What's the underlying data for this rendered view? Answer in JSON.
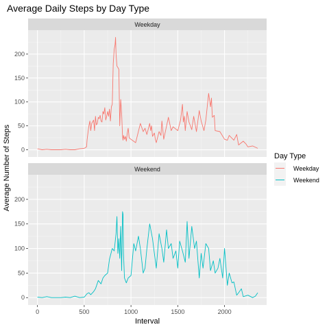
{
  "chart_data": {
    "type": "line",
    "title": "Average Daily Steps by Day Type",
    "xlabel": "Interval",
    "ylabel": "Average Number of Steps",
    "xlim": [
      -100,
      2450
    ],
    "ylim": [
      -15,
      250
    ],
    "x_ticks": [
      0,
      500,
      1000,
      1500,
      2000
    ],
    "y_ticks": [
      0,
      50,
      100,
      150,
      200
    ],
    "legend": {
      "title": "Day Type",
      "position": "right",
      "entries": [
        "Weekday",
        "Weekend"
      ]
    },
    "colors": {
      "Weekday": "#F8766D",
      "Weekend": "#00BFC4"
    },
    "facets": [
      "Weekday",
      "Weekend"
    ],
    "series": [
      {
        "name": "Weekday",
        "x": [
          0,
          50,
          100,
          150,
          200,
          250,
          300,
          350,
          400,
          450,
          500,
          525,
          530,
          540,
          550,
          560,
          570,
          580,
          600,
          610,
          620,
          630,
          640,
          650,
          660,
          670,
          680,
          690,
          700,
          710,
          720,
          730,
          740,
          750,
          760,
          770,
          780,
          790,
          800,
          810,
          820,
          830,
          835,
          840,
          850,
          860,
          870,
          880,
          890,
          900,
          910,
          915,
          920,
          930,
          940,
          950,
          960,
          970,
          980,
          1000,
          1050,
          1100,
          1130,
          1150,
          1170,
          1200,
          1210,
          1220,
          1230,
          1250,
          1260,
          1270,
          1300,
          1320,
          1330,
          1340,
          1350,
          1400,
          1430,
          1450,
          1500,
          1530,
          1550,
          1560,
          1570,
          1580,
          1600,
          1620,
          1650,
          1670,
          1700,
          1730,
          1750,
          1780,
          1800,
          1830,
          1850,
          1860,
          1870,
          1890,
          1900,
          1950,
          2000,
          2030,
          2050,
          2100,
          2130,
          2150,
          2200,
          2230,
          2250,
          2300,
          2355
        ],
        "values": [
          2,
          0,
          1,
          0,
          0,
          0,
          1,
          0,
          0,
          2,
          3,
          6,
          20,
          35,
          50,
          60,
          40,
          55,
          62,
          40,
          70,
          52,
          55,
          68,
          65,
          72,
          60,
          58,
          80,
          75,
          88,
          62,
          70,
          80,
          70,
          85,
          60,
          90,
          95,
          180,
          210,
          220,
          235,
          200,
          175,
          172,
          168,
          50,
          105,
          75,
          28,
          20,
          30,
          22,
          28,
          18,
          35,
          45,
          25,
          22,
          15,
          55,
          38,
          45,
          32,
          55,
          40,
          50,
          28,
          35,
          22,
          15,
          38,
          30,
          60,
          42,
          22,
          68,
          40,
          48,
          40,
          62,
          95,
          58,
          70,
          40,
          80,
          58,
          42,
          70,
          38,
          82,
          60,
          40,
          62,
          118,
          90,
          108,
          68,
          72,
          40,
          38,
          22,
          20,
          30,
          20,
          32,
          10,
          18,
          12,
          6,
          8,
          3
        ]
      },
      {
        "name": "Weekend",
        "x": [
          0,
          50,
          100,
          150,
          200,
          250,
          300,
          350,
          400,
          450,
          500,
          530,
          550,
          570,
          600,
          620,
          650,
          680,
          700,
          720,
          750,
          770,
          800,
          820,
          840,
          850,
          860,
          870,
          880,
          890,
          900,
          910,
          915,
          920,
          930,
          950,
          970,
          1000,
          1030,
          1050,
          1080,
          1100,
          1130,
          1150,
          1170,
          1200,
          1230,
          1250,
          1270,
          1300,
          1330,
          1350,
          1380,
          1400,
          1430,
          1450,
          1480,
          1500,
          1520,
          1550,
          1580,
          1600,
          1620,
          1650,
          1680,
          1700,
          1730,
          1750,
          1770,
          1800,
          1830,
          1850,
          1880,
          1900,
          1930,
          1950,
          1980,
          2000,
          2030,
          2050,
          2080,
          2100,
          2130,
          2150,
          2180,
          2200,
          2250,
          2300,
          2330,
          2355
        ],
        "values": [
          1,
          0,
          2,
          0,
          0,
          0,
          1,
          0,
          3,
          0,
          1,
          8,
          10,
          6,
          12,
          18,
          35,
          28,
          40,
          45,
          50,
          78,
          100,
          95,
          130,
          165,
          90,
          120,
          80,
          145,
          55,
          175,
          170,
          90,
          40,
          30,
          40,
          45,
          110,
          95,
          125,
          100,
          50,
          60,
          100,
          150,
          120,
          90,
          60,
          130,
          100,
          72,
          138,
          100,
          110,
          80,
          95,
          60,
          115,
          95,
          72,
          155,
          80,
          145,
          100,
          115,
          40,
          90,
          60,
          110,
          100,
          55,
          75,
          50,
          60,
          80,
          40,
          100,
          25,
          50,
          30,
          32,
          5,
          10,
          18,
          2,
          5,
          0,
          3,
          10
        ]
      }
    ]
  }
}
